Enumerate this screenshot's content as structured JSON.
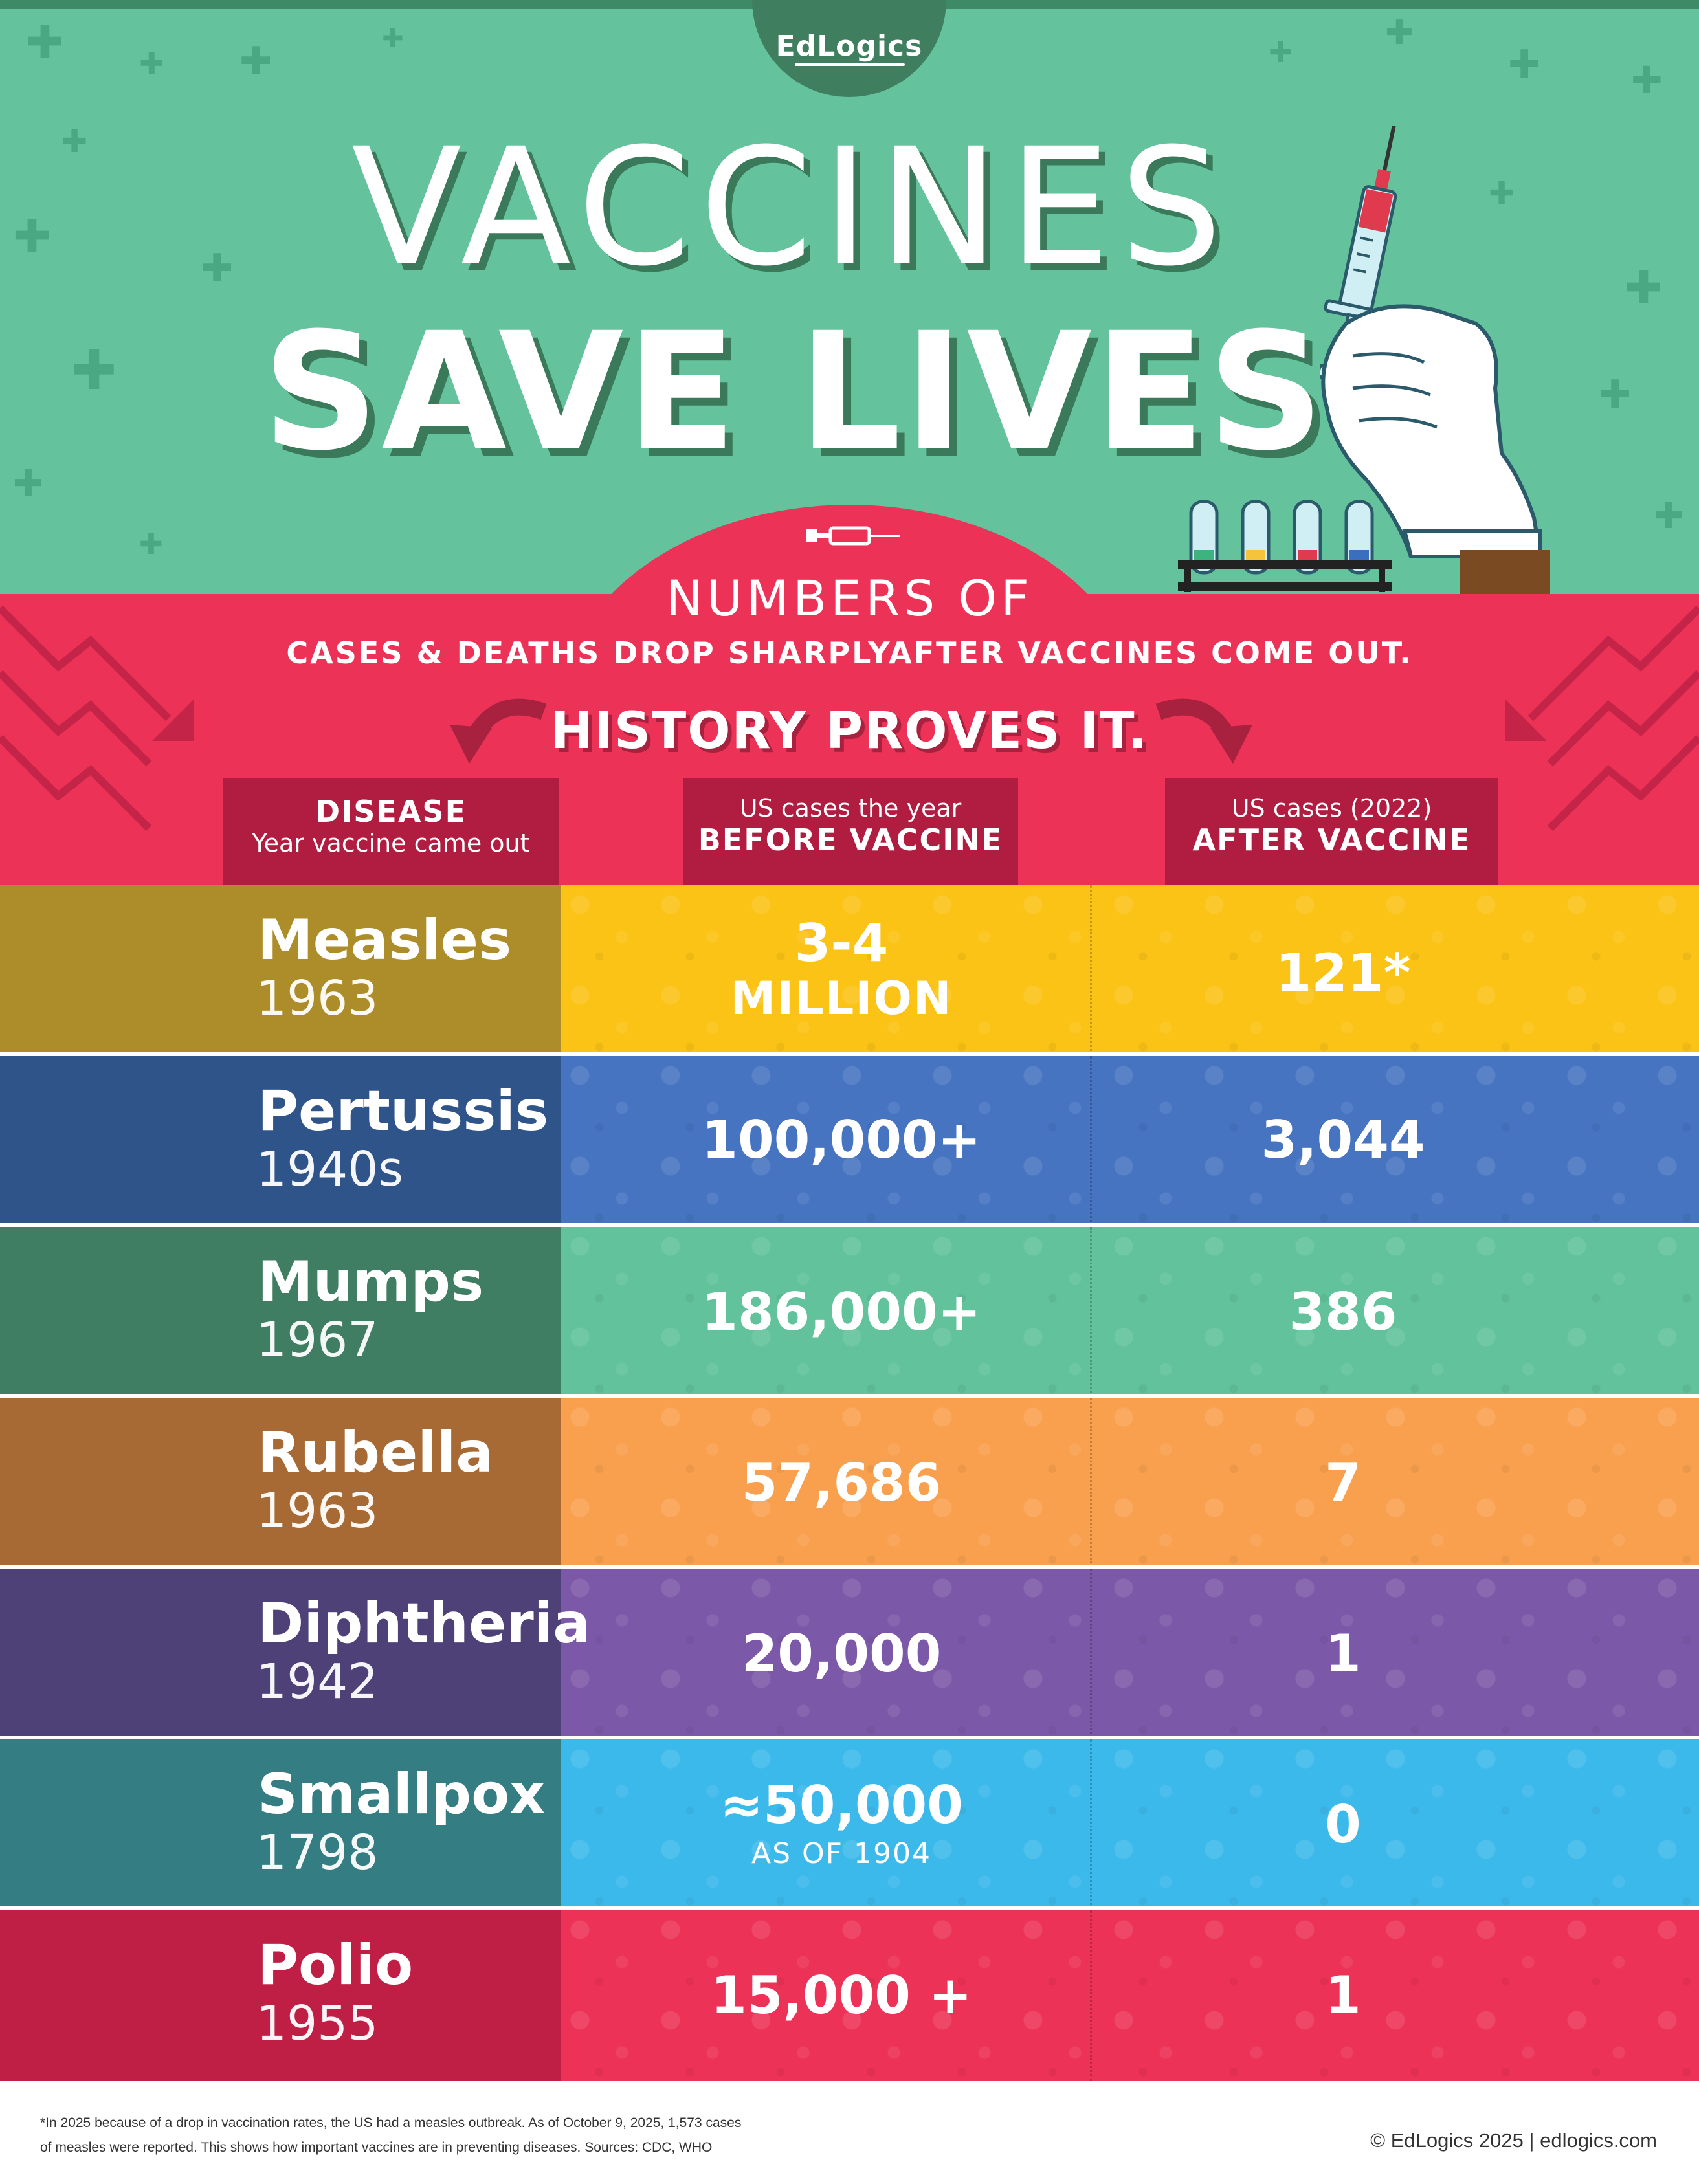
{
  "header": {
    "logo": "EdLogics",
    "title_line1": "VACCINES",
    "title_line2": "SAVE LIVES",
    "colors": {
      "green": "#64c39c",
      "dark_green": "#3a7a5a",
      "red": "#ec3256",
      "dark_red": "#b11d41"
    }
  },
  "banner": {
    "line1": "NUMBERS OF",
    "line2": "CASES & DEATHS DROP SHARPLYAFTER VACCINES COME OUT.",
    "line3": "HISTORY PROVES IT."
  },
  "columns": {
    "disease": {
      "title": "DISEASE",
      "subtitle": "Year vaccine came out"
    },
    "before": {
      "subtitle": "US cases the year",
      "title": "BEFORE VACCINE"
    },
    "after": {
      "subtitle": "US cases (2022)",
      "title": "AFTER VACCINE"
    }
  },
  "rows": [
    {
      "disease": "Measles",
      "year": "1963",
      "before": "3-4",
      "before_line2": "MILLION",
      "after": "121*",
      "left_color": "#ad8d2a",
      "right_color": "#fbc315"
    },
    {
      "disease": "Pertussis",
      "year": "1940s",
      "before": "100,000+",
      "after": "3,044",
      "left_color": "#2f548a",
      "right_color": "#4674c1"
    },
    {
      "disease": "Mumps",
      "year": "1967",
      "before": "186,000+",
      "after": "386",
      "left_color": "#3f7e62",
      "right_color": "#61c29b"
    },
    {
      "disease": "Rubella",
      "year": "1963",
      "before": "57,686",
      "after": "7",
      "left_color": "#a86a34",
      "right_color": "#f9a04f"
    },
    {
      "disease": "Diphtheria",
      "year": "1942",
      "before": "20,000",
      "after": "1",
      "left_color": "#4d4178",
      "right_color": "#7c59a8"
    },
    {
      "disease": "Smallpox",
      "year": "1798",
      "before": "≈50,000",
      "before_note": "AS OF 1904",
      "after": "0",
      "left_color": "#347d83",
      "right_color": "#3cb9eb"
    },
    {
      "disease": "Polio",
      "year": "1955",
      "before": "15,000 +",
      "after": "1",
      "left_color": "#c01f45",
      "right_color": "#ec3256"
    }
  ],
  "footer": {
    "note_line1": "*In 2025 because of a drop in vaccination rates, the US had a measles outbreak. As of October 9, 2025, 1,573 cases",
    "note_line2": "of measles were reported. This shows how important vaccines are in preventing diseases.  Sources: CDC, WHO",
    "copyright": "© EdLogics 2025   |   edlogics.com"
  }
}
